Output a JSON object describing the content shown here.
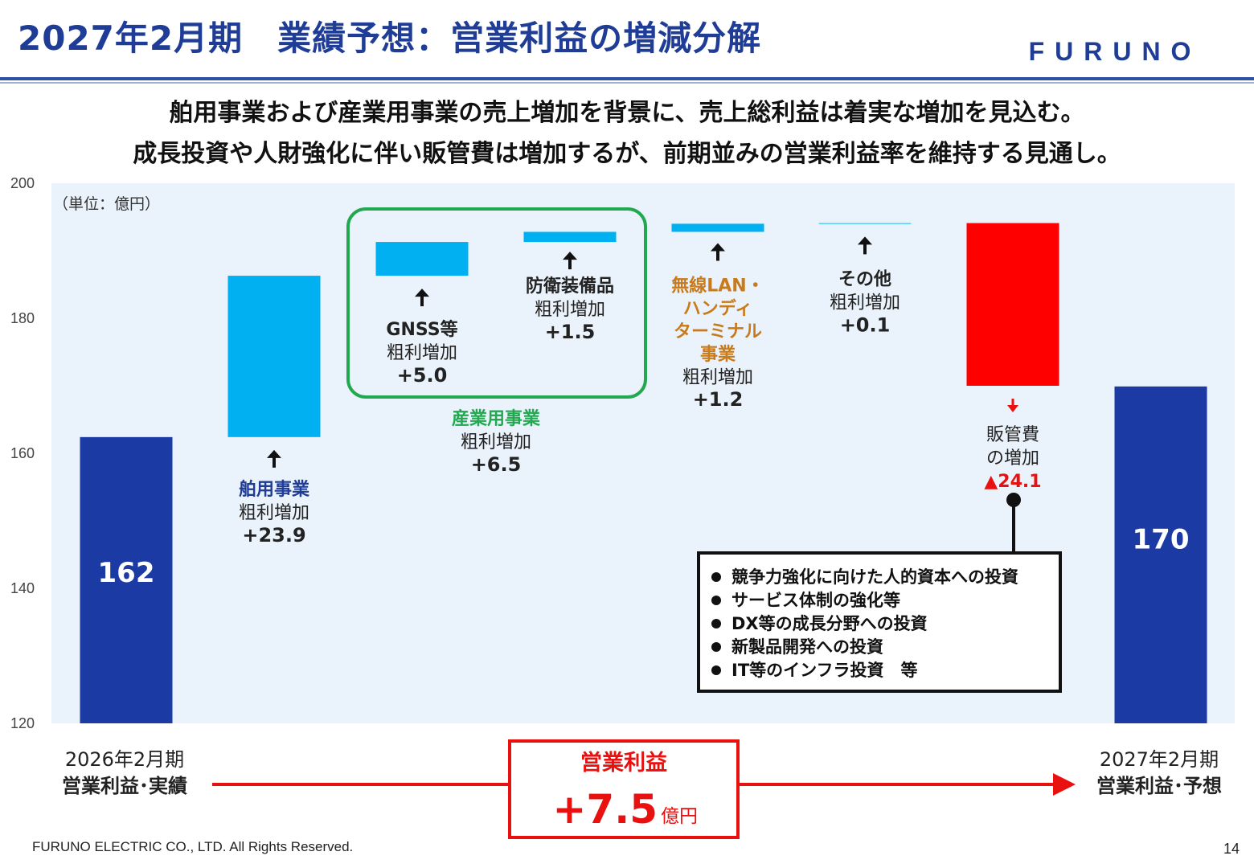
{
  "header": {
    "title": "2027年2月期　業績予想：営業利益の増減分解",
    "logo_text": "FURUNO"
  },
  "subtitle": [
    "舶用事業および産業用事業の売上増加を背景に、売上総利益は着実な増加を見込む。",
    "成長投資や人財強化に伴い販管費は増加するが、前期並みの営業利益率を維持する見通し。"
  ],
  "colors": {
    "total_bar": "#1b3aa3",
    "increase_bar": "#00b0f0",
    "decrease_bar": "#ff0000",
    "panel_bg": "#eaf3fb",
    "industrial_box": "#22a84f",
    "accent_red": "#e8110f",
    "wireless_text": "#c97a1a",
    "marine_text": "#1f3c96"
  },
  "chart_data": {
    "type": "waterfall",
    "unit": "（単位：億円）",
    "ylim": [
      120,
      200
    ],
    "yticks": [
      120,
      140,
      160,
      180,
      200
    ],
    "bars": [
      {
        "id": "start",
        "kind": "total",
        "value": 162.4,
        "label": "162"
      },
      {
        "id": "marine",
        "kind": "increase",
        "delta": 23.9,
        "lines": [
          {
            "text": "舶用事業",
            "style": "marine"
          },
          {
            "text": "粗利増加"
          },
          {
            "text": "+23.9",
            "style": "bold"
          }
        ]
      },
      {
        "id": "gnss",
        "kind": "increase",
        "delta": 5.0,
        "lines": [
          {
            "text": "GNSS等",
            "style": "bold"
          },
          {
            "text": "粗利増加"
          },
          {
            "text": "+5.0",
            "style": "bold"
          }
        ]
      },
      {
        "id": "defense",
        "kind": "increase",
        "delta": 1.5,
        "lines": [
          {
            "text": "防衛装備品",
            "style": "bold"
          },
          {
            "text": "粗利増加"
          },
          {
            "text": "+1.5",
            "style": "bold"
          }
        ]
      },
      {
        "id": "wireless",
        "kind": "increase",
        "delta": 1.2,
        "lines": [
          {
            "text": "無線LAN・",
            "style": "wireless"
          },
          {
            "text": "ハンディ",
            "style": "wireless"
          },
          {
            "text": "ターミナル",
            "style": "wireless"
          },
          {
            "text": "事業",
            "style": "wireless"
          },
          {
            "text": "粗利増加"
          },
          {
            "text": "+1.2",
            "style": "bold"
          }
        ]
      },
      {
        "id": "other",
        "kind": "increase",
        "delta": 0.1,
        "lines": [
          {
            "text": "その他",
            "style": "bold"
          },
          {
            "text": "粗利増加"
          },
          {
            "text": "+0.1",
            "style": "bold"
          }
        ]
      },
      {
        "id": "sga",
        "kind": "decrease",
        "delta": -24.1,
        "lines": [
          {
            "text": "販管費"
          },
          {
            "text": "の増加"
          },
          {
            "text": "▲24.1",
            "style": "red"
          }
        ]
      },
      {
        "id": "end",
        "kind": "total",
        "value": 169.9,
        "label": "170"
      }
    ],
    "group": {
      "label_lines": [
        {
          "text": "産業用事業",
          "style": "green"
        },
        {
          "text": "粗利増加"
        },
        {
          "text": "+6.5",
          "style": "bold"
        }
      ]
    },
    "callout_items": [
      "競争力強化に向けた人的資本への投資",
      "サービス体制の強化等",
      "DX等の成長分野への投資",
      "新製品開発への投資",
      "IT等のインフラ投資　等"
    ]
  },
  "bottom": {
    "left_period": "2026年2月期",
    "left_label": "営業利益･実績",
    "right_period": "2027年2月期",
    "right_label": "営業利益･予想",
    "center_title": "営業利益",
    "center_value": "+7.5",
    "center_unit": "億円"
  },
  "footer": {
    "copyright": "FURUNO ELECTRIC CO., LTD. All Rights Reserved.",
    "page_number": "14"
  }
}
